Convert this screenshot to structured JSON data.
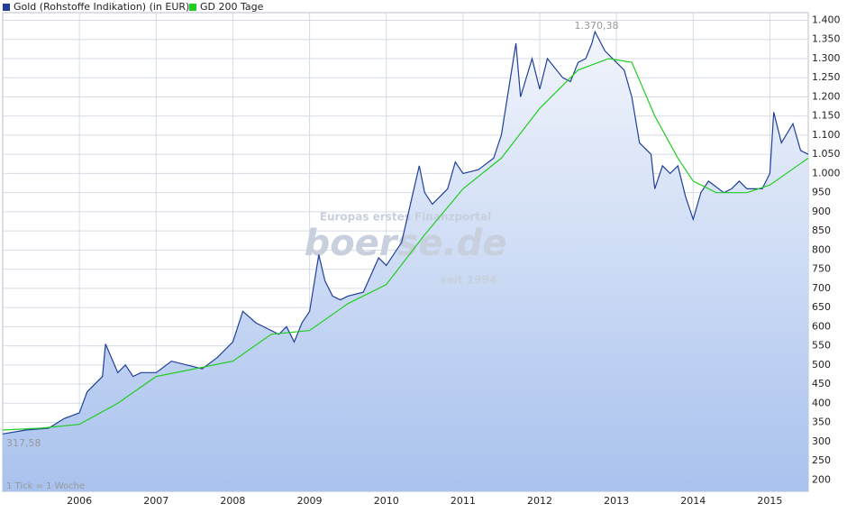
{
  "chart_data": {
    "type": "line",
    "legend": "top-left",
    "grid": true,
    "xlim": [
      2005.0,
      2015.5
    ],
    "xticks": [
      2006,
      2007,
      2008,
      2009,
      2010,
      2011,
      2012,
      2013,
      2014,
      2015
    ],
    "ylim": [
      170,
      1420
    ],
    "yticks": [
      200,
      250,
      300,
      350,
      400,
      450,
      500,
      550,
      600,
      650,
      700,
      750,
      800,
      850,
      900,
      950,
      {
        "value": 1000,
        "label": "1.000"
      },
      {
        "value": 1050,
        "label": "1.050"
      },
      {
        "value": 1100,
        "label": "1.100"
      },
      {
        "value": 1150,
        "label": "1.150"
      },
      {
        "value": 1200,
        "label": "1.200"
      },
      {
        "value": 1250,
        "label": "1.250"
      },
      {
        "value": 1300,
        "label": "1.300"
      },
      {
        "value": 1350,
        "label": "1.350"
      },
      {
        "value": 1400,
        "label": "1.400"
      }
    ],
    "annotations": [
      "1.370,38",
      "317,58",
      "1 Tick = 1 Woche",
      "Europas erstes Finanzportal",
      "boerse.de",
      "seit 1994"
    ],
    "series": [
      {
        "name": "Gold (Rohstoffe Indikation) (in EUR)",
        "color": "#1f3f99",
        "x": [
          2005.0,
          2005.3,
          2005.6,
          2005.8,
          2006.0,
          2006.1,
          2006.3,
          2006.34,
          2006.5,
          2006.6,
          2006.7,
          2006.8,
          2007.0,
          2007.2,
          2007.4,
          2007.6,
          2007.8,
          2008.0,
          2008.13,
          2008.3,
          2008.5,
          2008.6,
          2008.7,
          2008.8,
          2008.9,
          2009.0,
          2009.12,
          2009.2,
          2009.3,
          2009.4,
          2009.5,
          2009.7,
          2009.9,
          2010.0,
          2010.2,
          2010.43,
          2010.5,
          2010.6,
          2010.8,
          2010.9,
          2011.0,
          2011.2,
          2011.4,
          2011.5,
          2011.69,
          2011.75,
          2011.9,
          2012.0,
          2012.1,
          2012.3,
          2012.4,
          2012.5,
          2012.6,
          2012.68,
          2012.72,
          2012.85,
          2013.0,
          2013.1,
          2013.2,
          2013.3,
          2013.45,
          2013.5,
          2013.6,
          2013.7,
          2013.8,
          2013.9,
          2014.0,
          2014.1,
          2014.2,
          2014.4,
          2014.5,
          2014.6,
          2014.7,
          2014.8,
          2014.9,
          2015.0,
          2015.05,
          2015.15,
          2015.3,
          2015.4,
          2015.5
        ],
        "values": [
          320,
          330,
          335,
          360,
          375,
          430,
          470,
          555,
          480,
          500,
          470,
          480,
          480,
          510,
          500,
          490,
          520,
          560,
          640,
          610,
          590,
          580,
          600,
          560,
          610,
          640,
          788,
          720,
          680,
          670,
          680,
          690,
          780,
          760,
          820,
          1020,
          950,
          920,
          960,
          1030,
          1000,
          1010,
          1040,
          1100,
          1340,
          1200,
          1300,
          1220,
          1300,
          1250,
          1240,
          1290,
          1300,
          1340,
          1370.38,
          1320,
          1290,
          1270,
          1200,
          1080,
          1050,
          960,
          1020,
          1000,
          1020,
          940,
          880,
          950,
          980,
          950,
          960,
          980,
          960,
          960,
          960,
          1000,
          1160,
          1080,
          1130,
          1060,
          1050
        ]
      },
      {
        "name": "GD 200 Tage",
        "color": "#22cc22",
        "x": [
          2005.0,
          2005.5,
          2006.0,
          2006.5,
          2007.0,
          2007.5,
          2008.0,
          2008.5,
          2009.0,
          2009.5,
          2010.0,
          2010.5,
          2011.0,
          2011.5,
          2012.0,
          2012.5,
          2012.9,
          2013.2,
          2013.5,
          2013.8,
          2014.0,
          2014.3,
          2014.7,
          2015.0,
          2015.5
        ],
        "values": [
          330,
          335,
          345,
          400,
          470,
          490,
          510,
          580,
          590,
          660,
          710,
          840,
          960,
          1040,
          1170,
          1270,
          1300,
          1290,
          1150,
          1040,
          980,
          950,
          950,
          970,
          1040
        ]
      }
    ]
  }
}
